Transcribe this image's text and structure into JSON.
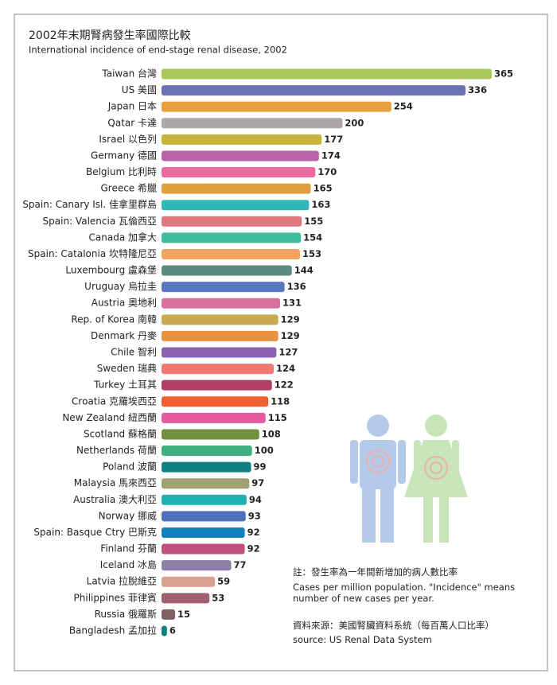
{
  "chart_data": {
    "type": "bar",
    "orientation": "horizontal",
    "title": "2002年末期腎病發生率國際比較",
    "subtitle": "International incidence of end-stage renal disease, 2002",
    "categories": [
      "Taiwan 台灣",
      "US 美國",
      "Japan 日本",
      "Qatar 卡達",
      "Israel 以色列",
      "Germany 德國",
      "Belgium 比利時",
      "Greece 希臘",
      "Spain: Canary Isl. 佳拿里群島",
      "Spain: Valencia 瓦倫西亞",
      "Canada 加拿大",
      "Spain: Catalonia 坎特隆尼亞",
      "Luxembourg 盧森堡",
      "Uruguay 烏拉圭",
      "Austria 奧地利",
      "Rep. of Korea 南韓",
      "Denmark 丹麥",
      "Chile 智利",
      "Sweden 瑞典",
      "Turkey 土耳其",
      "Croatia 克羅埃西亞",
      "New Zealand 紐西蘭",
      "Scotland 蘇格蘭",
      "Netherlands 荷蘭",
      "Poland 波蘭",
      "Malaysia 馬來西亞",
      "Australia 澳大利亞",
      "Norway 挪威",
      "Spain: Basque Ctry 巴斯克",
      "Finland 芬蘭",
      "Iceland 冰島",
      "Latvia 拉脫維亞",
      "Philippines 菲律賓",
      "Russia 俄羅斯",
      "Bangladesh 孟加拉"
    ],
    "values": [
      365,
      336,
      254,
      200,
      177,
      174,
      170,
      165,
      163,
      155,
      154,
      153,
      144,
      136,
      131,
      129,
      129,
      127,
      124,
      122,
      118,
      115,
      108,
      100,
      99,
      97,
      94,
      93,
      92,
      92,
      77,
      59,
      53,
      15,
      6
    ],
    "colors": [
      "#a6c95a",
      "#6a72b8",
      "#e8a040",
      "#ada6a6",
      "#c8b43c",
      "#b862a8",
      "#ec6aa0",
      "#e0a040",
      "#30b8b8",
      "#e07880",
      "#3cbc9c",
      "#f4a460",
      "#5a8a80",
      "#5a78c0",
      "#d870a0",
      "#c8aa50",
      "#e89040",
      "#8a60b0",
      "#f07870",
      "#b04060",
      "#f06030",
      "#e85aa0",
      "#70903c",
      "#40b080",
      "#108080",
      "#a0a070",
      "#20b0b0",
      "#5070b8",
      "#1080c0",
      "#c05080",
      "#8a80a8",
      "#d8a090",
      "#a06070",
      "#806060",
      "#108080"
    ],
    "notes": [
      "註：發生率為一年間新增加的病人數比率",
      "Cases per million population. \"Incidence\" means number of new cases per year.",
      "資料來源：美國腎臟資料系統（每百萬人口比率）",
      "source: US Renal Data System"
    ]
  }
}
